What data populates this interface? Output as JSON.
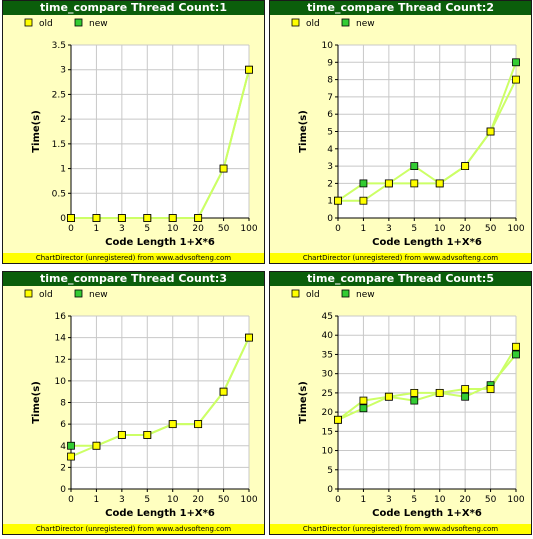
{
  "colors": {
    "title_bg": "#0b5e0b",
    "panel_bg": "#ffffc0",
    "footer_bg": "#ffff00",
    "old": "#ffff00",
    "new": "#33cc33",
    "line": "#ccff66",
    "grid": "#c8c8c8"
  },
  "footer_text": "ChartDirector (unregistered) from www.advsofteng.com",
  "chart_data": [
    {
      "type": "line",
      "title": "time_compare Thread Count:1",
      "xlabel": "Code Length 1+X*6",
      "ylabel": "Time(s)",
      "categories": [
        "0",
        "1",
        "3",
        "5",
        "10",
        "20",
        "50",
        "100"
      ],
      "ylim": [
        0,
        3.5
      ],
      "yticks": [
        0,
        0.5,
        1,
        1.5,
        2,
        2.5,
        3,
        3.5
      ],
      "ytick_labels": [
        "0",
        "0.5",
        "1",
        "1.5",
        "2",
        "2.5",
        "3",
        "3.5"
      ],
      "legend_position": "top-left",
      "grid": true,
      "series": [
        {
          "name": "old",
          "values": [
            0,
            0,
            0,
            0,
            0,
            0,
            1,
            3
          ]
        },
        {
          "name": "new",
          "values": [
            0,
            0,
            0,
            0,
            0,
            0,
            1,
            3
          ]
        }
      ]
    },
    {
      "type": "line",
      "title": "time_compare Thread Count:2",
      "xlabel": "Code Length 1+X*6",
      "ylabel": "Time(s)",
      "categories": [
        "0",
        "1",
        "3",
        "5",
        "10",
        "20",
        "50",
        "100"
      ],
      "ylim": [
        0,
        10
      ],
      "yticks": [
        0,
        1,
        2,
        3,
        4,
        5,
        6,
        7,
        8,
        9,
        10
      ],
      "ytick_labels": [
        "0",
        "1",
        "2",
        "3",
        "4",
        "5",
        "6",
        "7",
        "8",
        "9",
        "10"
      ],
      "legend_position": "top-left",
      "grid": true,
      "series": [
        {
          "name": "old",
          "values": [
            1,
            1,
            2,
            2,
            2,
            3,
            5,
            8
          ]
        },
        {
          "name": "new",
          "values": [
            1,
            2,
            2,
            3,
            2,
            3,
            5,
            9
          ]
        }
      ]
    },
    {
      "type": "line",
      "title": "time_compare Thread Count:3",
      "xlabel": "Code Length 1+X*6",
      "ylabel": "Time(s)",
      "categories": [
        "0",
        "1",
        "3",
        "5",
        "10",
        "20",
        "50",
        "100"
      ],
      "ylim": [
        0,
        16
      ],
      "yticks": [
        0,
        2,
        4,
        6,
        8,
        10,
        12,
        14,
        16
      ],
      "ytick_labels": [
        "0",
        "2",
        "4",
        "6",
        "8",
        "10",
        "12",
        "14",
        "16"
      ],
      "legend_position": "top-left",
      "grid": true,
      "series": [
        {
          "name": "old",
          "values": [
            3,
            4,
            5,
            5,
            6,
            6,
            9,
            14
          ]
        },
        {
          "name": "new",
          "values": [
            4,
            4,
            5,
            5,
            6,
            6,
            9,
            14
          ]
        }
      ]
    },
    {
      "type": "line",
      "title": "time_compare Thread Count:5",
      "xlabel": "Code Length 1+X*6",
      "ylabel": "Time(s)",
      "categories": [
        "0",
        "1",
        "3",
        "5",
        "10",
        "20",
        "50",
        "100"
      ],
      "ylim": [
        0,
        45
      ],
      "yticks": [
        0,
        5,
        10,
        15,
        20,
        25,
        30,
        35,
        40,
        45
      ],
      "ytick_labels": [
        "0",
        "5",
        "10",
        "15",
        "20",
        "25",
        "30",
        "35",
        "40",
        "45"
      ],
      "legend_position": "top-left",
      "grid": true,
      "series": [
        {
          "name": "old",
          "values": [
            18,
            23,
            24,
            25,
            25,
            26,
            26,
            37
          ]
        },
        {
          "name": "new",
          "values": [
            18,
            21,
            24,
            23,
            25,
            24,
            27,
            35
          ]
        }
      ]
    }
  ]
}
